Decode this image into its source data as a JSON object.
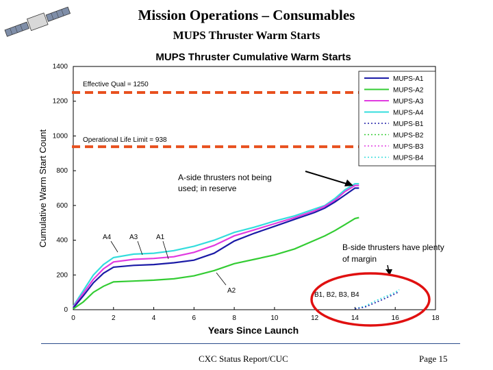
{
  "slide": {
    "title": "Mission Operations – Consumables",
    "subtitle": "MUPS Thruster Warm Starts",
    "footer_center": "CXC Status Report/CUC",
    "footer_page": "Page 15"
  },
  "colors": {
    "A1": "#1a1aa6",
    "A2": "#33cc33",
    "A3": "#e03ae0",
    "A4": "#33dddd",
    "B1": "#1a1aa6",
    "B2": "#33cc33",
    "B3": "#e03ae0",
    "B4": "#33dddd",
    "threshold": "#e8501e",
    "ellipse": "#e01010"
  },
  "chart_data": {
    "type": "line",
    "title": "MUPS Thruster Cumulative Warm Starts",
    "xlabel": "Years Since Launch",
    "ylabel": "Cumulative Warm Start Count",
    "xlim": [
      0,
      18
    ],
    "ylim": [
      0,
      1400
    ],
    "xticks": [
      0,
      2,
      4,
      6,
      8,
      10,
      12,
      14,
      16,
      18
    ],
    "yticks": [
      0,
      200,
      400,
      600,
      800,
      1000,
      1200,
      1400
    ],
    "legend": {
      "placement": "top-right",
      "entries": [
        {
          "key": "A1",
          "label": "MUPS-A1",
          "style": "solid"
        },
        {
          "key": "A2",
          "label": "MUPS-A2",
          "style": "solid"
        },
        {
          "key": "A3",
          "label": "MUPS-A3",
          "style": "solid"
        },
        {
          "key": "A4",
          "label": "MUPS-A4",
          "style": "solid"
        },
        {
          "key": "B1",
          "label": "MUPS-B1",
          "style": "dotted"
        },
        {
          "key": "B2",
          "label": "MUPS-B2",
          "style": "dotted"
        },
        {
          "key": "B3",
          "label": "MUPS-B3",
          "style": "dotted"
        },
        {
          "key": "B4",
          "label": "MUPS-B4",
          "style": "dotted"
        }
      ]
    },
    "thresholds": [
      {
        "label": "Effective Qual = 1250",
        "value": 1250
      },
      {
        "label": "Operational Life Limit = 938",
        "value": 938
      }
    ],
    "series": [
      {
        "key": "A4",
        "name": "MUPS-A4",
        "x": [
          0,
          0.5,
          1,
          1.5,
          2,
          3,
          4,
          5,
          6,
          7,
          8,
          9,
          10,
          11,
          12,
          12.5,
          13,
          13.5,
          14,
          14.2
        ],
        "y": [
          20,
          110,
          200,
          260,
          300,
          320,
          325,
          340,
          365,
          400,
          445,
          475,
          510,
          540,
          580,
          600,
          640,
          690,
          725,
          725
        ]
      },
      {
        "key": "A3",
        "name": "MUPS-A3",
        "x": [
          0,
          0.5,
          1,
          1.5,
          2,
          3,
          4,
          5,
          6,
          7,
          8,
          9,
          10,
          11,
          12,
          12.5,
          13,
          13.5,
          14,
          14.2
        ],
        "y": [
          15,
          95,
          175,
          235,
          275,
          290,
          295,
          305,
          330,
          370,
          425,
          460,
          495,
          530,
          570,
          595,
          630,
          680,
          715,
          715
        ]
      },
      {
        "key": "A1",
        "name": "MUPS-A1",
        "x": [
          0,
          0.5,
          1,
          1.5,
          2,
          3,
          4,
          5,
          6,
          7,
          8,
          9,
          10,
          11,
          12,
          12.5,
          13,
          13.5,
          14,
          14.2
        ],
        "y": [
          10,
          80,
          155,
          210,
          245,
          255,
          260,
          270,
          285,
          325,
          395,
          440,
          480,
          520,
          560,
          585,
          620,
          660,
          700,
          700
        ]
      },
      {
        "key": "A2",
        "name": "MUPS-A2",
        "x": [
          0,
          0.5,
          1,
          1.5,
          2,
          3,
          4,
          5,
          6,
          7,
          8,
          9,
          10,
          11,
          12,
          12.5,
          13,
          13.5,
          14,
          14.2
        ],
        "y": [
          5,
          45,
          100,
          135,
          160,
          165,
          170,
          178,
          195,
          225,
          265,
          290,
          315,
          350,
          400,
          425,
          455,
          490,
          525,
          530
        ]
      },
      {
        "key": "B4",
        "name": "MUPS-B4",
        "x": [
          14,
          14.5,
          15,
          15.5,
          16,
          16.2
        ],
        "y": [
          5,
          20,
          50,
          75,
          100,
          115
        ]
      },
      {
        "key": "B1",
        "name": "MUPS-B1",
        "x": [
          14,
          14.5,
          15,
          15.5,
          16,
          16.2
        ],
        "y": [
          5,
          15,
          40,
          65,
          92,
          105
        ]
      }
    ],
    "annotations": [
      {
        "text": "A4"
      },
      {
        "text": "A3"
      },
      {
        "text": "A1"
      },
      {
        "text": "A2"
      },
      {
        "text": "B1, B2, B3, B4"
      },
      {
        "line1": "A-side thrusters not being",
        "line2": "used; in reserve"
      },
      {
        "line1": "B-side thrusters have plenty",
        "line2": "of margin"
      }
    ]
  }
}
